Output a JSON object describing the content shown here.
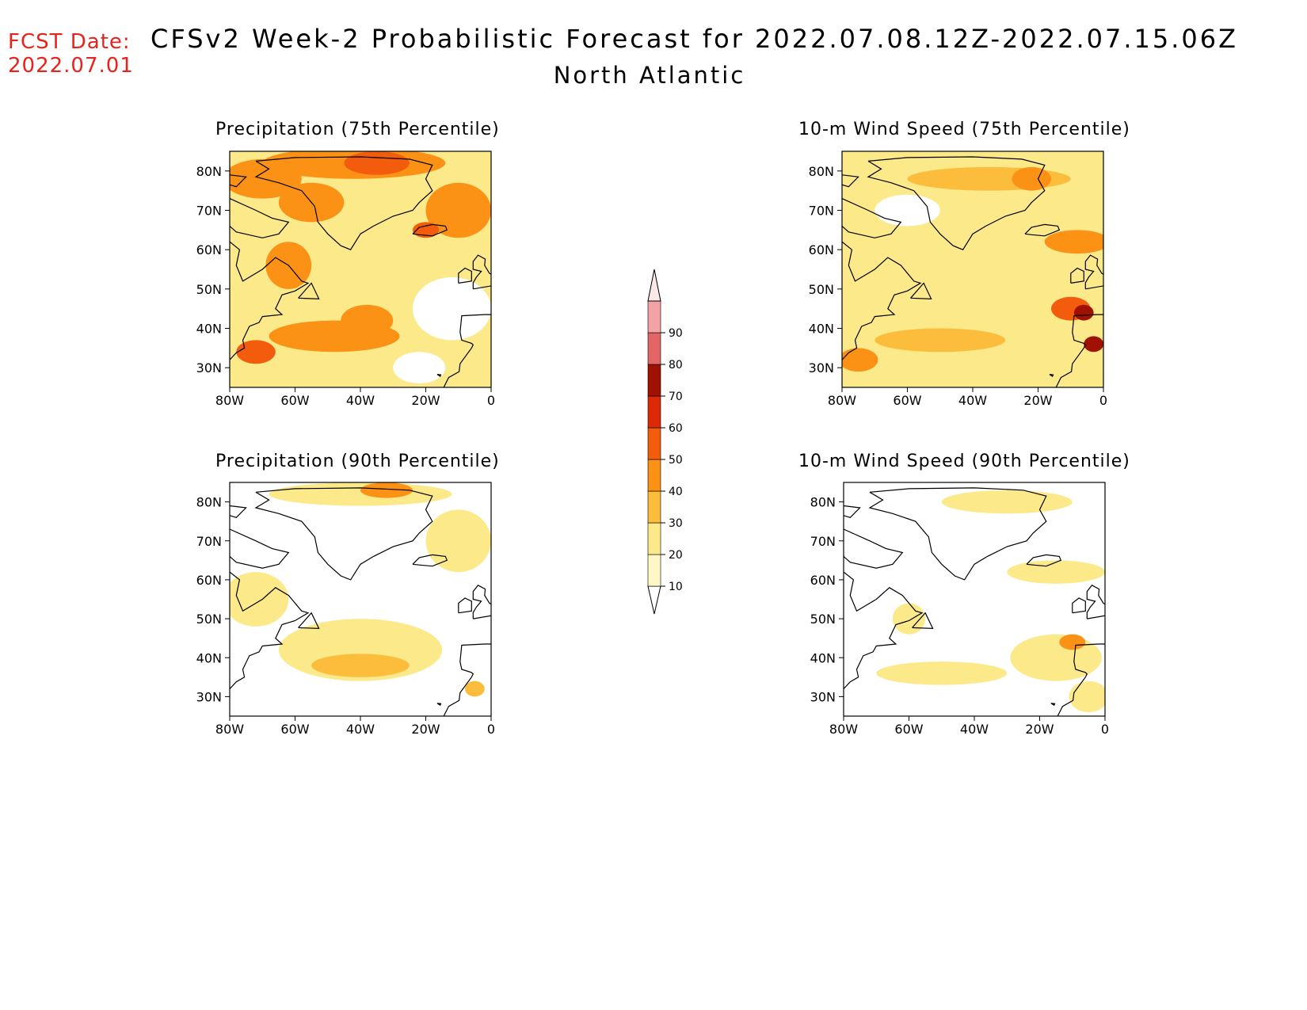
{
  "header": {
    "fcst_label": "FCST Date:",
    "fcst_date": "2022.07.01",
    "title": "CFSv2 Week-2 Probabilistic Forecast for 2022.07.08.12Z-2022.07.15.06Z",
    "subtitle": "North Atlantic"
  },
  "axes": {
    "lat_ticks": [
      "80N",
      "70N",
      "60N",
      "50N",
      "40N",
      "30N"
    ],
    "lon_ticks": [
      "80W",
      "60W",
      "40W",
      "20W",
      "0"
    ],
    "lat_range": [
      25,
      85
    ],
    "lon_range": [
      -80,
      0
    ]
  },
  "colorbar": {
    "labels": [
      "10",
      "20",
      "30",
      "40",
      "50",
      "60",
      "70",
      "80",
      "90"
    ],
    "colors": [
      "#fff8c6",
      "#fce98a",
      "#fcbd3c",
      "#fb9215",
      "#f25c0c",
      "#dc2a08",
      "#a11102",
      "#e26666",
      "#f2a3a3",
      "#fde7e7"
    ]
  },
  "panels": [
    {
      "id": "precip-75",
      "title": "Precipitation (75th Percentile)"
    },
    {
      "id": "wind-75",
      "title": "10-m Wind Speed (75th Percentile)"
    },
    {
      "id": "precip-90",
      "title": "Precipitation (90th Percentile)"
    },
    {
      "id": "wind-90",
      "title": "10-m Wind Speed (90th Percentile)"
    }
  ],
  "map_fields": [
    {
      "panel": "precip-75",
      "base_level": 1,
      "blobs": [
        {
          "lon": -42,
          "lat": 82,
          "rx": 28,
          "ry": 4,
          "level": 3
        },
        {
          "lon": -35,
          "lat": 82,
          "rx": 10,
          "ry": 3,
          "level": 4
        },
        {
          "lon": -70,
          "lat": 78,
          "rx": 12,
          "ry": 5,
          "level": 3
        },
        {
          "lon": -55,
          "lat": 72,
          "rx": 10,
          "ry": 5,
          "level": 3
        },
        {
          "lon": -10,
          "lat": 70,
          "rx": 10,
          "ry": 7,
          "level": 3
        },
        {
          "lon": -20,
          "lat": 65,
          "rx": 4,
          "ry": 2,
          "level": 4
        },
        {
          "lon": -62,
          "lat": 56,
          "rx": 7,
          "ry": 6,
          "level": 3
        },
        {
          "lon": -48,
          "lat": 38,
          "rx": 20,
          "ry": 4,
          "level": 3
        },
        {
          "lon": -38,
          "lat": 42,
          "rx": 8,
          "ry": 4,
          "level": 3
        },
        {
          "lon": -72,
          "lat": 34,
          "rx": 6,
          "ry": 3,
          "level": 4
        },
        {
          "lon": -12,
          "lat": 45,
          "rx": 12,
          "ry": 8,
          "level": 0
        },
        {
          "lon": -22,
          "lat": 30,
          "rx": 8,
          "ry": 4,
          "level": 0
        }
      ]
    },
    {
      "panel": "wind-75",
      "base_level": 1,
      "blobs": [
        {
          "lon": -35,
          "lat": 78,
          "rx": 25,
          "ry": 3,
          "level": 2
        },
        {
          "lon": -22,
          "lat": 78,
          "rx": 6,
          "ry": 3,
          "level": 3
        },
        {
          "lon": -8,
          "lat": 62,
          "rx": 10,
          "ry": 3,
          "level": 3
        },
        {
          "lon": -50,
          "lat": 37,
          "rx": 20,
          "ry": 3,
          "level": 2
        },
        {
          "lon": -75,
          "lat": 32,
          "rx": 6,
          "ry": 3,
          "level": 3
        },
        {
          "lon": -10,
          "lat": 45,
          "rx": 6,
          "ry": 3,
          "level": 4
        },
        {
          "lon": -6,
          "lat": 44,
          "rx": 3,
          "ry": 2,
          "level": 6
        },
        {
          "lon": -3,
          "lat": 36,
          "rx": 3,
          "ry": 2,
          "level": 6
        },
        {
          "lon": -60,
          "lat": 70,
          "rx": 10,
          "ry": 4,
          "level": 0
        }
      ]
    },
    {
      "panel": "precip-90",
      "base_level": 0,
      "blobs": [
        {
          "lon": -40,
          "lat": 82,
          "rx": 28,
          "ry": 3,
          "level": 1
        },
        {
          "lon": -32,
          "lat": 83,
          "rx": 8,
          "ry": 2,
          "level": 3
        },
        {
          "lon": -10,
          "lat": 70,
          "rx": 10,
          "ry": 8,
          "level": 1
        },
        {
          "lon": -72,
          "lat": 55,
          "rx": 10,
          "ry": 7,
          "level": 1
        },
        {
          "lon": -40,
          "lat": 42,
          "rx": 25,
          "ry": 8,
          "level": 1
        },
        {
          "lon": -40,
          "lat": 38,
          "rx": 15,
          "ry": 3,
          "level": 2
        },
        {
          "lon": -5,
          "lat": 32,
          "rx": 3,
          "ry": 2,
          "level": 2
        }
      ]
    },
    {
      "panel": "wind-90",
      "base_level": 0,
      "blobs": [
        {
          "lon": -30,
          "lat": 80,
          "rx": 20,
          "ry": 3,
          "level": 1
        },
        {
          "lon": -15,
          "lat": 62,
          "rx": 15,
          "ry": 3,
          "level": 1
        },
        {
          "lon": -50,
          "lat": 36,
          "rx": 20,
          "ry": 3,
          "level": 1
        },
        {
          "lon": -15,
          "lat": 40,
          "rx": 14,
          "ry": 6,
          "level": 1
        },
        {
          "lon": -10,
          "lat": 44,
          "rx": 4,
          "ry": 2,
          "level": 3
        },
        {
          "lon": -60,
          "lat": 50,
          "rx": 5,
          "ry": 4,
          "level": 1
        },
        {
          "lon": -5,
          "lat": 30,
          "rx": 6,
          "ry": 4,
          "level": 1
        }
      ]
    }
  ]
}
